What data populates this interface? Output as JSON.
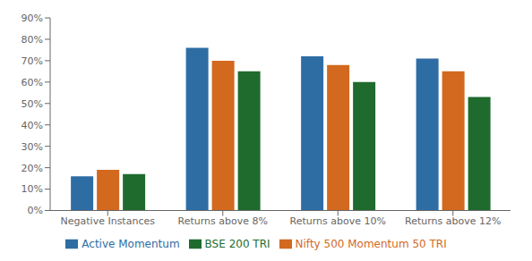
{
  "chart_data": {
    "type": "bar",
    "categories": [
      "Negative Instances",
      "Returns above 8%",
      "Returns above 10%",
      "Returns above 12%"
    ],
    "series": [
      {
        "name": "Active Momentum",
        "color": "#2e6da4",
        "values": [
          16,
          76,
          72,
          71
        ]
      },
      {
        "name": "Nifty 500 Momentum 50 TRI",
        "color": "#d2691e",
        "values": [
          19,
          70,
          68,
          65
        ]
      },
      {
        "name": "BSE 200 TRI",
        "color": "#1f6b2e",
        "values": [
          17,
          65,
          60,
          53
        ]
      }
    ],
    "ylim": [
      0,
      90
    ],
    "yticks": [
      {
        "value": 0,
        "label": "0%"
      },
      {
        "value": 10,
        "label": "10%"
      },
      {
        "value": 20,
        "label": "20%"
      },
      {
        "value": 30,
        "label": "30%"
      },
      {
        "value": 40,
        "label": "40%"
      },
      {
        "value": 50,
        "label": "50%"
      },
      {
        "value": 60,
        "label": "60%"
      },
      {
        "value": 70,
        "label": "70%"
      },
      {
        "value": 80,
        "label": "80%"
      },
      {
        "value": 90,
        "label": "90%"
      }
    ],
    "grid": false,
    "legend": "bottom"
  }
}
